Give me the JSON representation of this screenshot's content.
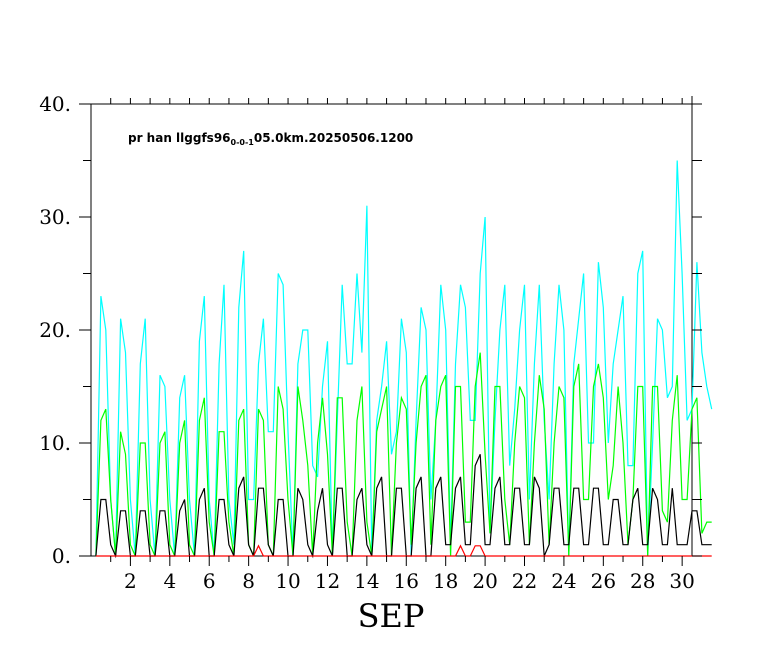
{
  "chart_data": {
    "type": "line",
    "title_parts": {
      "prefix": "pr han llggfs96",
      "subscript": "0-0-1",
      "suffix": "05.0km.20250506.1200"
    },
    "xlabel": "SEP",
    "ylabel": "",
    "xlim": [
      0,
      30.5
    ],
    "ylim": [
      0,
      40
    ],
    "x_ticks": [
      2,
      4,
      6,
      8,
      10,
      12,
      14,
      16,
      18,
      20,
      22,
      24,
      26,
      28,
      30
    ],
    "x_tick_labels": [
      "2",
      "4",
      "6",
      "8",
      "10",
      "12",
      "14",
      "16",
      "18",
      "20",
      "22",
      "24",
      "26",
      "28",
      "30"
    ],
    "y_ticks": [
      0,
      10,
      20,
      30,
      40
    ],
    "y_tick_labels": [
      "0.",
      "10.",
      "20.",
      "30.",
      "40."
    ],
    "grid": false,
    "x_step_days": 0.25,
    "series": [
      {
        "color": "#00ffff",
        "values": [
          0,
          23,
          20,
          5,
          0,
          21,
          18,
          5,
          0,
          17,
          21,
          5,
          0,
          16,
          15,
          5,
          0,
          14,
          16,
          5,
          0,
          19,
          23,
          5,
          0,
          17,
          24,
          5,
          1,
          22,
          27,
          5,
          5,
          17,
          21,
          11,
          11,
          25,
          24,
          11,
          0,
          17,
          20,
          20,
          8,
          7,
          15,
          19,
          0,
          12,
          24,
          17,
          17,
          25,
          18,
          31,
          0,
          12,
          15,
          19,
          9,
          11,
          21,
          18,
          0,
          12,
          22,
          20,
          5,
          12,
          24,
          20,
          1,
          17,
          24,
          22,
          12,
          12,
          25,
          30,
          2,
          12,
          20,
          24,
          8,
          13,
          20,
          24,
          5,
          17,
          24,
          12,
          5,
          17,
          24,
          20,
          0,
          17,
          21,
          25,
          10,
          10,
          26,
          22,
          10,
          17,
          20,
          23,
          8,
          8,
          25,
          27,
          0,
          10,
          21,
          20,
          14,
          15,
          35,
          25,
          12,
          13,
          26,
          18,
          15,
          13
        ]
      },
      {
        "color": "#00ff00",
        "values": [
          0,
          12,
          13,
          5,
          0,
          11,
          9,
          1,
          0,
          10,
          10,
          1,
          0,
          10,
          11,
          1,
          0,
          10,
          12,
          1,
          0,
          12,
          14,
          3,
          0,
          11,
          11,
          3,
          0,
          12,
          13,
          1,
          0,
          13,
          12,
          1,
          0,
          15,
          13,
          5,
          0,
          15,
          12,
          8,
          0,
          10,
          14,
          9,
          0,
          14,
          14,
          3,
          0,
          12,
          15,
          3,
          0,
          11,
          13,
          15,
          0,
          10,
          14,
          13,
          1,
          10,
          15,
          16,
          1,
          12,
          15,
          16,
          0,
          15,
          15,
          3,
          3,
          15,
          18,
          9,
          2,
          15,
          15,
          5,
          1,
          10,
          15,
          14,
          1,
          10,
          16,
          13,
          1,
          10,
          15,
          14,
          0,
          15,
          17,
          5,
          5,
          15,
          17,
          14,
          5,
          8,
          15,
          10,
          1,
          5,
          15,
          15,
          0,
          15,
          15,
          4,
          3,
          12,
          16,
          5,
          5,
          13,
          14,
          2,
          3,
          3
        ]
      },
      {
        "color": "#000000",
        "values": [
          0,
          5,
          5,
          1,
          0,
          4,
          4,
          0,
          0,
          4,
          4,
          0,
          0,
          4,
          4,
          0,
          0,
          4,
          5,
          0,
          0,
          5,
          6,
          0,
          0,
          5,
          5,
          1,
          0,
          6,
          7,
          1,
          0,
          6,
          6,
          1,
          0,
          5,
          5,
          0,
          0,
          6,
          5,
          1,
          0,
          4,
          6,
          1,
          0,
          6,
          6,
          0,
          0,
          5,
          6,
          1,
          0,
          6,
          7,
          0,
          0,
          6,
          6,
          0,
          0,
          6,
          7,
          0,
          0,
          6,
          7,
          1,
          1,
          6,
          7,
          1,
          1,
          8,
          9,
          1,
          1,
          6,
          7,
          1,
          1,
          6,
          6,
          1,
          1,
          7,
          6,
          0,
          1,
          6,
          6,
          1,
          1,
          6,
          6,
          1,
          1,
          6,
          6,
          1,
          1,
          5,
          5,
          1,
          1,
          5,
          6,
          1,
          1,
          6,
          5,
          1,
          1,
          6,
          1,
          1,
          1,
          4,
          4,
          1,
          1,
          1
        ]
      },
      {
        "color": "#ff0000",
        "values": [
          0,
          0,
          0,
          0,
          0,
          0,
          0,
          0,
          0,
          0,
          0,
          0,
          0,
          0,
          0,
          0,
          0,
          0,
          0,
          0,
          0,
          0,
          0,
          0,
          0,
          0,
          0,
          0,
          0,
          0,
          0,
          0,
          0,
          0.9,
          0,
          0,
          0,
          0,
          0,
          0,
          0,
          0,
          0,
          0,
          0,
          0,
          0,
          0,
          0,
          0,
          0,
          0,
          0,
          0,
          0,
          0,
          0,
          0,
          0,
          0,
          0,
          0,
          0,
          0,
          0,
          0,
          0,
          0,
          0,
          0,
          0,
          0,
          0,
          0,
          0.9,
          0,
          0,
          0.9,
          0.9,
          0,
          0,
          0,
          0,
          0,
          0,
          0,
          0,
          0,
          0,
          0,
          0,
          0,
          0,
          0,
          0,
          0,
          0,
          0,
          0,
          0,
          0,
          0,
          0,
          0,
          0,
          0,
          0,
          0,
          0,
          0,
          0,
          0,
          0,
          0,
          0,
          0,
          0,
          0,
          0,
          0,
          0,
          0,
          0,
          0,
          0,
          0
        ]
      }
    ]
  }
}
